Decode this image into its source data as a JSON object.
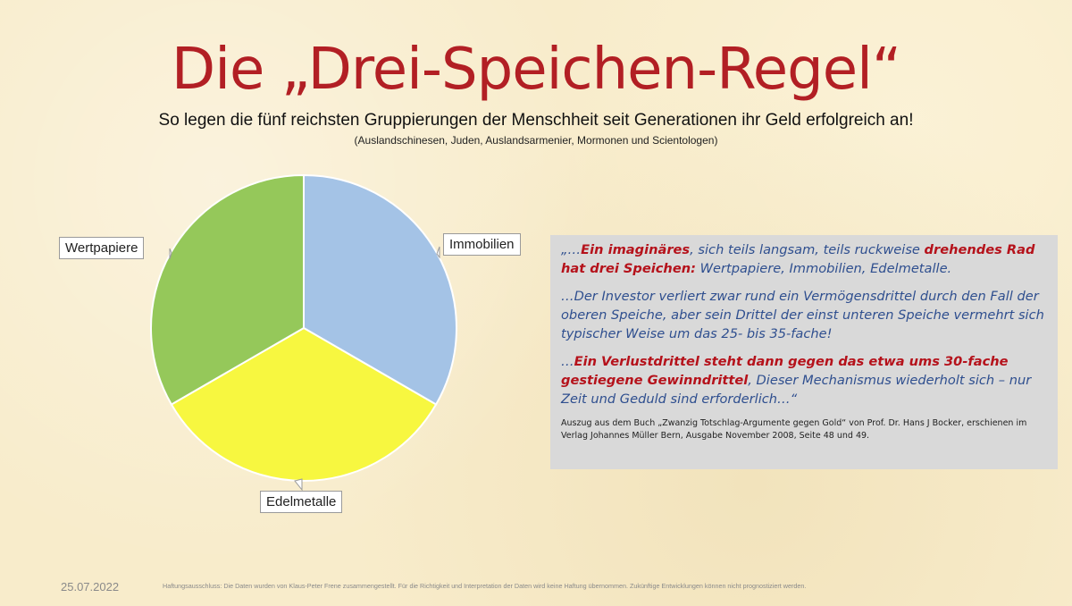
{
  "slide": {
    "title": "Die „Drei-Speichen-Regel“",
    "subtitle": "So legen die fünf reichsten Gruppierungen der Menschheit seit Generationen ihr Geld erfolgreich an!",
    "subnote": "(Auslandschinesen, Juden, Auslandsarmenier, Mormonen und Scientologen)",
    "date": "25.07.2022",
    "disclaimer": "Haftungsausschluss: Die Daten wurden von Klaus-Peter Frene zusammengestellt. Für die Richtigkeit und Interpretation der Daten wird keine Haftung übernommen. Zukünftige Entwicklungen können nicht prognostiziert werden."
  },
  "quote": {
    "p1_a": "„…",
    "p1_b": "Ein imaginäres",
    "p1_c": ", sich teils langsam, teils ruckweise ",
    "p1_d": "drehendes Rad hat drei Speichen:",
    "p1_e": " Wertpapiere, Immobilien, Edelmetalle.",
    "p2": "…Der Investor verliert zwar rund ein Vermögensdrittel durch den Fall der oberen Speiche, aber sein Drittel der einst unteren Speiche vermehrt sich typischer Weise um das 25- bis 35-fache!",
    "p3_a": "…",
    "p3_b": "Ein Verlustdrittel steht dann gegen das etwa ums 30-fache gestiegene Gewinndrittel",
    "p3_c": ", Dieser Mechanismus wiederholt sich – nur Zeit und Geduld sind erforderlich…“",
    "source": "Auszug aus dem Buch „Zwanzig Totschlag-Argumente gegen Gold“ von Prof. Dr. Hans J Bocker, erschienen im Verlag Johannes Müller Bern, Ausgabe November 2008, Seite 48 und 49."
  },
  "chart_data": {
    "type": "pie",
    "title": "",
    "categories": [
      "Immobilien",
      "Edelmetalle",
      "Wertpapiere"
    ],
    "values": [
      33.33,
      33.33,
      33.33
    ],
    "colors": [
      "#a4c3e6",
      "#f7f740",
      "#95c85a"
    ],
    "start_angle_deg": 0,
    "direction": "clockwise",
    "labels_in_callouts": true
  }
}
